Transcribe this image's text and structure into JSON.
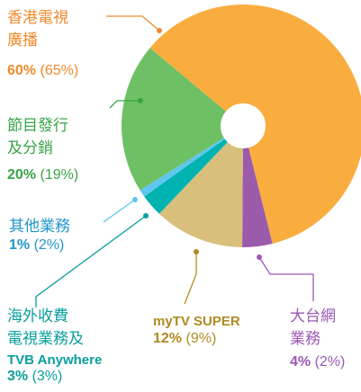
{
  "chart_data": {
    "type": "donut",
    "categories": [
      "香港電視\n廣播",
      "大台網\n業務",
      "myTV SUPER",
      "海外收費\n電視業務及",
      "其他業務",
      "節目發行\n及分銷"
    ],
    "subcategories": [
      null,
      null,
      null,
      "TVB Anywhere",
      null,
      null
    ],
    "values": [
      60,
      4,
      12,
      3,
      1,
      20
    ],
    "value_labels": [
      "60%",
      "4%",
      "12%",
      "3%",
      "1%",
      "20%"
    ],
    "prior_labels": [
      "(65%)",
      "(2%)",
      "(9%)",
      "(3%)",
      "(2%)",
      "(19%)"
    ],
    "colors": [
      "#f9ad3f",
      "#9b5bab",
      "#d9bf7c",
      "#00b2b0",
      "#5fc6ee",
      "#6ec064"
    ],
    "label_colors": [
      "#ef8a2c",
      "#9b59b6",
      "#b08a22",
      "#0a9f9c",
      "#2196c9",
      "#38a447"
    ]
  }
}
